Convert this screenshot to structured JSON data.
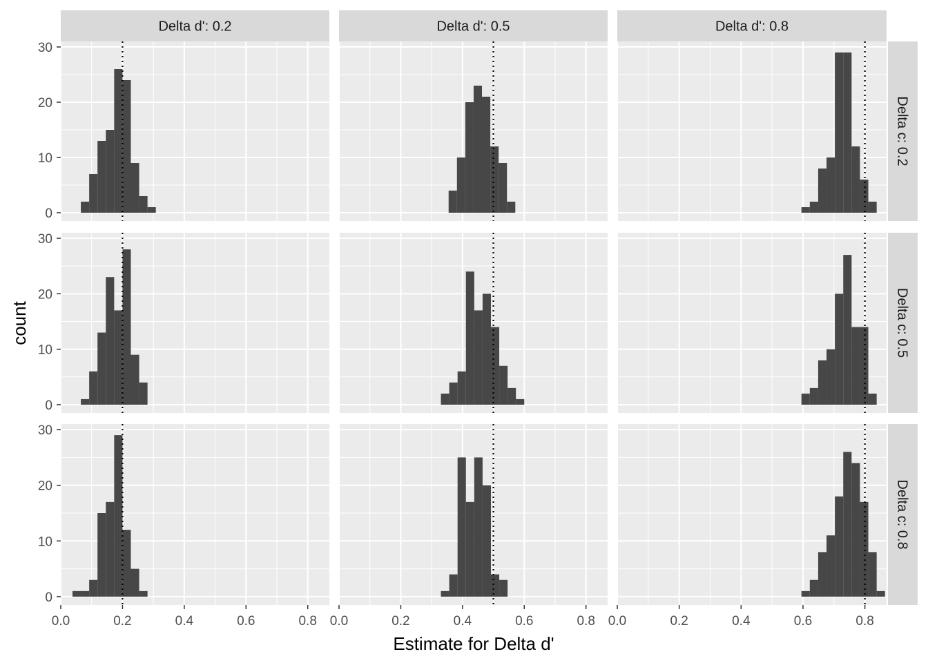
{
  "chart_data": {
    "type": "bar",
    "subtype": "faceted-histogram",
    "xlabel": "Estimate for Delta d'",
    "ylabel": "count",
    "xlim": [
      0,
      0.87
    ],
    "ylim": [
      -1.5,
      31
    ],
    "x_ticks": [
      0,
      0.2,
      0.4,
      0.6,
      0.8
    ],
    "x_tick_labels": [
      "0.0",
      "0.2",
      "0.4",
      "0.6",
      "0.8"
    ],
    "y_ticks": [
      0,
      10,
      20,
      30
    ],
    "y_tick_labels": [
      "0",
      "10",
      "20",
      "30"
    ],
    "bin_width": 0.027,
    "grid": true,
    "colors": {
      "bar": "#474747",
      "panel_bg": "#ebebeb",
      "strip_bg": "#d9d9d9",
      "grid": "#ffffff",
      "reference_line": "#000000"
    },
    "col_strip_labels": [
      "Delta d': 0.2",
      "Delta d': 0.5",
      "Delta d': 0.8"
    ],
    "row_strip_labels": [
      "Delta c: 0.2",
      "Delta c: 0.5",
      "Delta c: 0.8"
    ],
    "reference_lines": [
      0.2,
      0.5,
      0.8
    ],
    "panels": [
      {
        "row": 0,
        "col": 0,
        "bin_start": 0.065,
        "counts": [
          2,
          7,
          13,
          15,
          26,
          24,
          9,
          3,
          1
        ]
      },
      {
        "row": 0,
        "col": 1,
        "bin_start": 0.355,
        "counts": [
          4,
          10,
          20,
          23,
          21,
          12,
          9,
          2
        ]
      },
      {
        "row": 0,
        "col": 2,
        "bin_start": 0.595,
        "counts": [
          1,
          2,
          8,
          10,
          29,
          29,
          12,
          6,
          2
        ]
      },
      {
        "row": 1,
        "col": 0,
        "bin_start": 0.065,
        "counts": [
          1,
          6,
          13,
          23,
          17,
          28,
          9,
          4
        ]
      },
      {
        "row": 1,
        "col": 1,
        "bin_start": 0.33,
        "counts": [
          2,
          4,
          6,
          24,
          17,
          20,
          14,
          7,
          3,
          1
        ]
      },
      {
        "row": 1,
        "col": 2,
        "bin_start": 0.595,
        "counts": [
          2,
          3,
          8,
          10,
          20,
          27,
          14,
          14,
          2
        ]
      },
      {
        "row": 2,
        "col": 0,
        "bin_start": 0.038,
        "counts": [
          1,
          1,
          3,
          15,
          17,
          29,
          12,
          5,
          1
        ]
      },
      {
        "row": 2,
        "col": 1,
        "bin_start": 0.33,
        "counts": [
          1,
          4,
          25,
          17,
          25,
          20,
          4,
          3
        ]
      },
      {
        "row": 2,
        "col": 2,
        "bin_start": 0.595,
        "counts": [
          1,
          3,
          8,
          11,
          18,
          26,
          24,
          17,
          8,
          1
        ]
      }
    ]
  }
}
